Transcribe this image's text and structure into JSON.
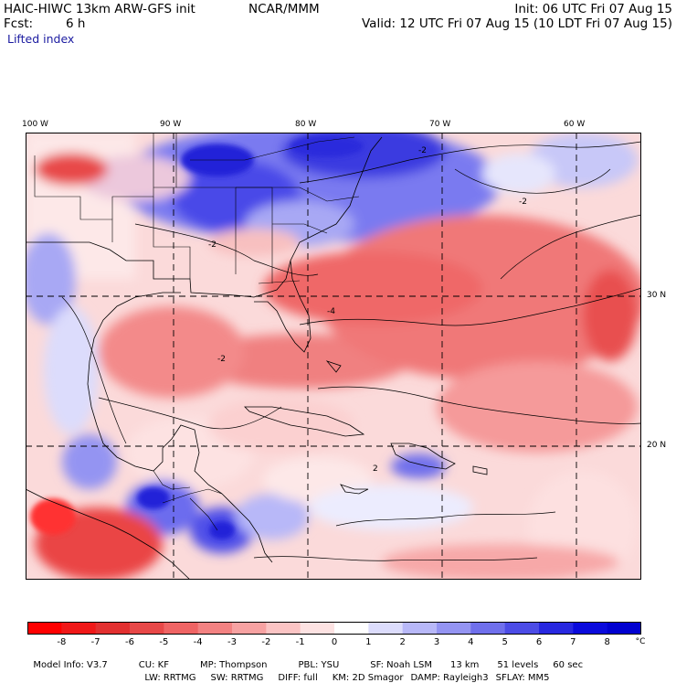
{
  "header": {
    "model": "HAIC-HIWC 13km ARW-GFS init",
    "org": "NCAR/MMM",
    "init": "Init: 06 UTC Fri 07 Aug 15",
    "fcst_label": "Fcst:",
    "fcst_value": "6 h",
    "valid": "Valid: 12 UTC Fri 07 Aug 15 (10 LDT Fri 07 Aug 15)",
    "field": "Lifted index"
  },
  "map": {
    "lon_labels": [
      "100 W",
      "90 W",
      "80 W",
      "70 W",
      "60 W"
    ],
    "lat_labels": [
      "30 N",
      "20 N"
    ],
    "contour_labels": [
      "-2",
      "-4",
      "2"
    ]
  },
  "colorbar": {
    "labels": [
      "-8",
      "-7",
      "-6",
      "-5",
      "-4",
      "-3",
      "-2",
      "-1",
      "0",
      "1",
      "2",
      "3",
      "4",
      "5",
      "6",
      "7",
      "8"
    ],
    "unit": "°C",
    "colors": [
      "#ff0000",
      "#f01818",
      "#e23030",
      "#e84848",
      "#ef6464",
      "#f38282",
      "#f7a2a2",
      "#fbc4c4",
      "#fde2e2",
      "#ffffff",
      "#dcdcfc",
      "#b8b8f8",
      "#9494f2",
      "#7070ec",
      "#4c4ce6",
      "#2828e0",
      "#0a0adc",
      "#0000d0"
    ]
  },
  "footer": {
    "line1": [
      "Model Info: V3.7",
      "CU: KF",
      "MP: Thompson",
      "PBL: YSU",
      "SF: Noah LSM",
      "13 km",
      "51 levels",
      "60 sec"
    ],
    "line2": [
      "LW: RRTMG",
      "SW: RRTMG",
      "DIFF: full",
      "KM: 2D Smagor",
      "DAMP: Rayleigh3",
      "SFLAY: MM5"
    ]
  }
}
